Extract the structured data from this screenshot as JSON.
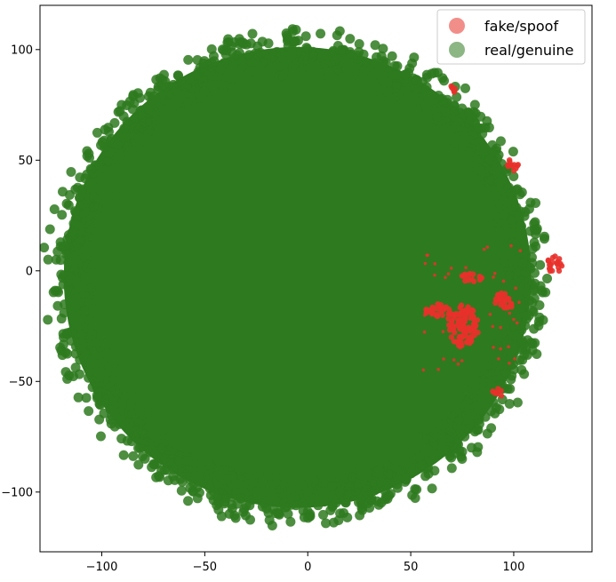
{
  "chart_data": {
    "type": "scatter",
    "title": "",
    "xlabel": "",
    "ylabel": "",
    "xlim": [
      -130,
      138
    ],
    "ylim": [
      -127,
      120
    ],
    "xticks": [
      -100,
      -50,
      0,
      50,
      100
    ],
    "yticks": [
      -100,
      -50,
      0,
      50,
      100
    ],
    "xtick_labels": [
      "−100",
      "−50",
      "0",
      "50",
      "100"
    ],
    "ytick_labels": [
      "−100",
      "−50",
      "0",
      "50",
      "100"
    ],
    "grid": false,
    "legend_position": "top-right",
    "series": [
      {
        "name": "fake/spoof",
        "color": "#e8312a",
        "alpha": 0.55,
        "description_regions": [
          {
            "x": 75,
            "y": -25,
            "rx": 8,
            "ry": 10
          },
          {
            "x": 63,
            "y": -18,
            "rx": 6,
            "ry": 3
          },
          {
            "x": 95,
            "y": -14,
            "rx": 5,
            "ry": 4
          },
          {
            "x": 80,
            "y": -3,
            "rx": 6,
            "ry": 2
          },
          {
            "x": 120,
            "y": 3,
            "rx": 4,
            "ry": 4
          },
          {
            "x": 100,
            "y": 48,
            "rx": 3,
            "ry": 3
          },
          {
            "x": 92,
            "y": -55,
            "rx": 3,
            "ry": 2
          },
          {
            "x": 70,
            "y": 82,
            "rx": 2,
            "ry": 2
          }
        ]
      },
      {
        "name": "real/genuine",
        "color": "#2e7a1f",
        "alpha": 0.55,
        "cluster": {
          "center_x": -5,
          "center_y": -3,
          "radius_x": 122,
          "radius_y": 112
        }
      }
    ]
  }
}
